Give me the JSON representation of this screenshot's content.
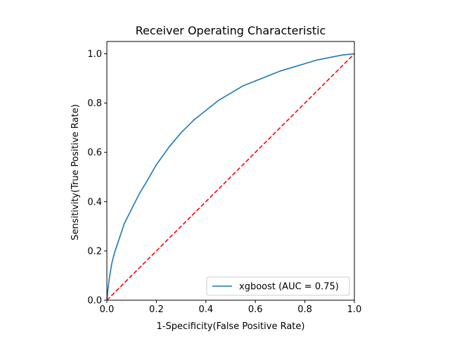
{
  "chart_data": {
    "type": "line",
    "title": "Receiver Operating Characteristic",
    "xlabel": "1-Specificity(False Positive Rate)",
    "ylabel": "Sensitivity(True Positive Rate)",
    "xlim": [
      0.0,
      1.0
    ],
    "ylim": [
      0.0,
      1.05
    ],
    "x_ticks": [
      "0.0",
      "0.2",
      "0.4",
      "0.6",
      "0.8",
      "1.0"
    ],
    "y_ticks": [
      "0.0",
      "0.2",
      "0.4",
      "0.6",
      "0.8",
      "1.0"
    ],
    "x_tick_values": [
      0.0,
      0.2,
      0.4,
      0.6,
      0.8,
      1.0
    ],
    "y_tick_values": [
      0.0,
      0.2,
      0.4,
      0.6,
      0.8,
      1.0
    ],
    "grid": false,
    "legend_position": "lower right",
    "series": [
      {
        "name": "xgboost (AUC = 0.75)",
        "color": "#1f77b4",
        "style": "solid",
        "x": [
          0.0,
          0.005,
          0.01,
          0.02,
          0.03,
          0.05,
          0.07,
          0.1,
          0.13,
          0.16,
          0.2,
          0.25,
          0.3,
          0.35,
          0.4,
          0.45,
          0.5,
          0.55,
          0.6,
          0.65,
          0.7,
          0.75,
          0.8,
          0.85,
          0.9,
          0.95,
          1.0
        ],
        "y": [
          0.0,
          0.05,
          0.09,
          0.15,
          0.19,
          0.25,
          0.31,
          0.37,
          0.43,
          0.48,
          0.55,
          0.62,
          0.68,
          0.73,
          0.77,
          0.81,
          0.84,
          0.87,
          0.89,
          0.91,
          0.93,
          0.945,
          0.96,
          0.975,
          0.985,
          0.995,
          1.0
        ]
      },
      {
        "name": "",
        "color": "#ff0000",
        "style": "dashed",
        "x": [
          0.0,
          1.0
        ],
        "y": [
          0.0,
          1.0
        ]
      }
    ]
  }
}
